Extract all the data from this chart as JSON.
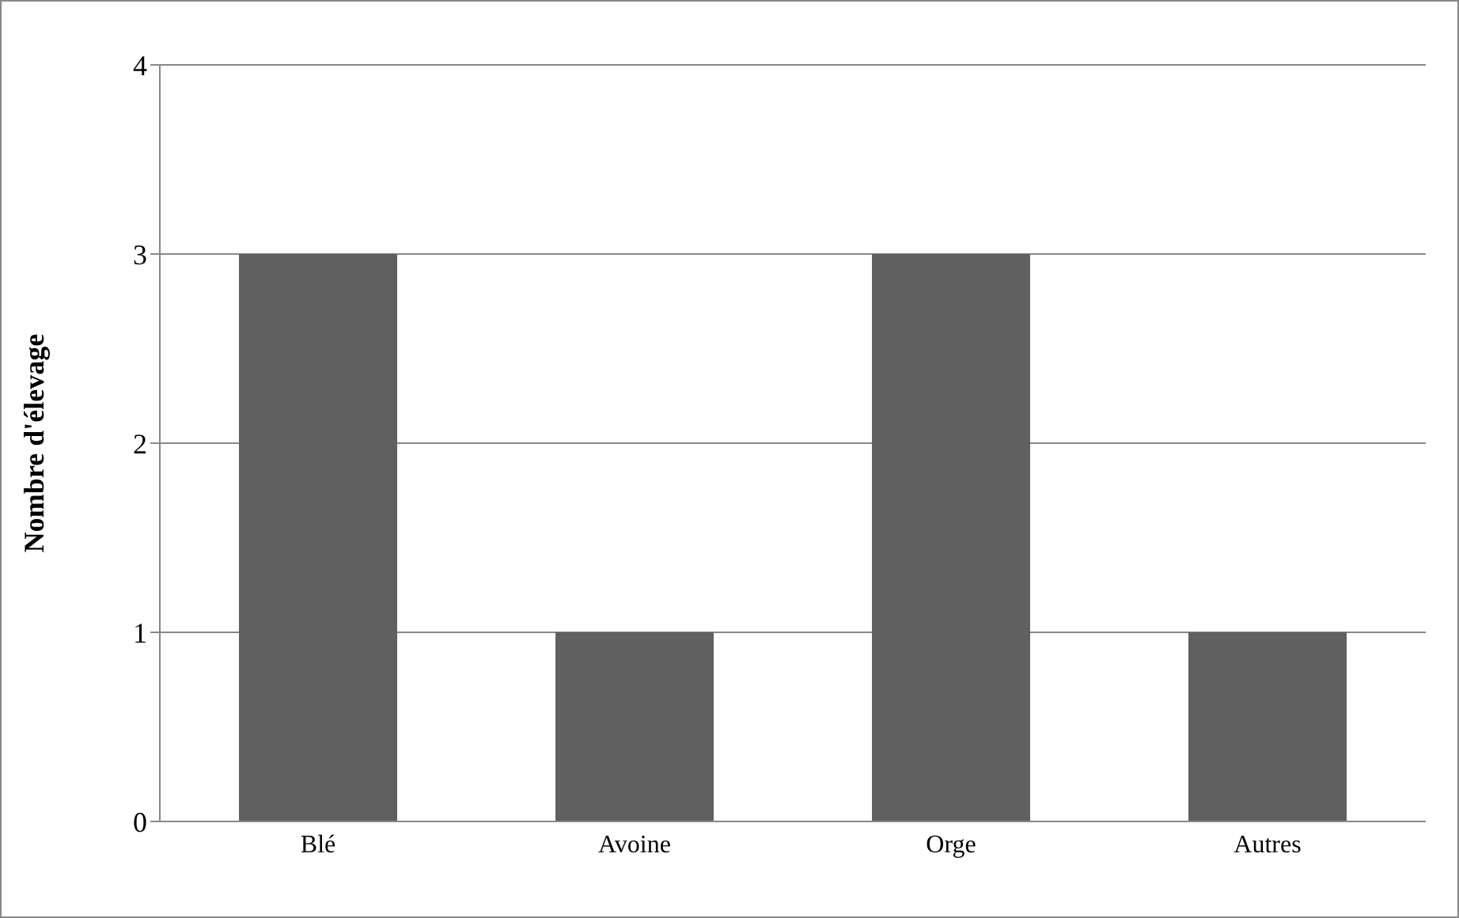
{
  "chart_data": {
    "type": "bar",
    "ylabel": "Nombre d'élevage",
    "categories": [
      "Blé",
      "Avoine",
      "Orge",
      "Autres"
    ],
    "values": [
      3,
      1,
      3,
      1
    ],
    "color": "#606060",
    "ylim": [
      0,
      4
    ],
    "yticks": [
      0,
      1,
      2,
      3,
      4
    ],
    "grid": "y"
  }
}
